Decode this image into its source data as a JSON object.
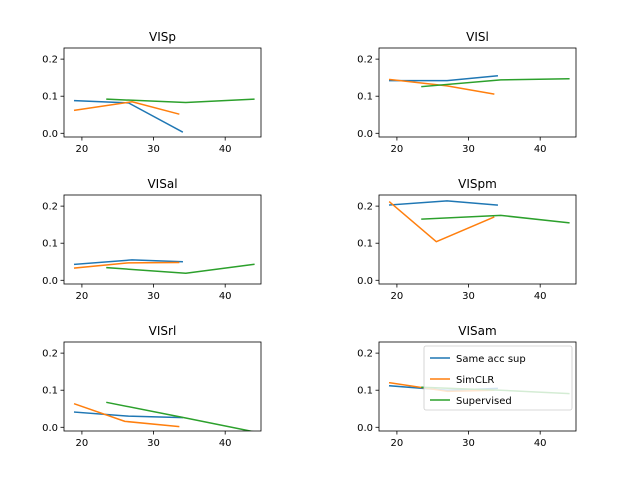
{
  "chart_data": [
    {
      "type": "line",
      "title": "VISp",
      "xlim": [
        17.5,
        45
      ],
      "ylim": [
        -0.01,
        0.23
      ],
      "xticks": [
        20,
        30,
        40
      ],
      "yticks": [
        "0.0",
        "0.1",
        "0.2"
      ],
      "series": [
        {
          "name": "Same acc sup",
          "color": "#1f77b4",
          "x": [
            19,
            26.5,
            34
          ],
          "y": [
            0.088,
            0.082,
            0.004
          ]
        },
        {
          "name": "SimCLR",
          "color": "#ff7f0e",
          "x": [
            19,
            27,
            33.5
          ],
          "y": [
            0.062,
            0.085,
            0.052
          ]
        },
        {
          "name": "Supervised",
          "color": "#2ca02c",
          "x": [
            23.5,
            34.5,
            44
          ],
          "y": [
            0.092,
            0.083,
            0.092
          ]
        }
      ]
    },
    {
      "type": "line",
      "title": "VISl",
      "xlim": [
        17.5,
        45
      ],
      "ylim": [
        -0.01,
        0.23
      ],
      "xticks": [
        20,
        30,
        40
      ],
      "yticks": [
        "0.0",
        "0.1",
        "0.2"
      ],
      "series": [
        {
          "name": "Same acc sup",
          "color": "#1f77b4",
          "x": [
            19,
            27,
            34
          ],
          "y": [
            0.142,
            0.142,
            0.155
          ]
        },
        {
          "name": "SimCLR",
          "color": "#ff7f0e",
          "x": [
            19,
            27,
            33.5
          ],
          "y": [
            0.145,
            0.128,
            0.106
          ]
        },
        {
          "name": "Supervised",
          "color": "#2ca02c",
          "x": [
            23.5,
            34.5,
            44
          ],
          "y": [
            0.126,
            0.144,
            0.147
          ]
        }
      ]
    },
    {
      "type": "line",
      "title": "VISal",
      "xlim": [
        17.5,
        45
      ],
      "ylim": [
        -0.01,
        0.23
      ],
      "xticks": [
        20,
        30,
        40
      ],
      "yticks": [
        "0.0",
        "0.1",
        "0.2"
      ],
      "series": [
        {
          "name": "Same acc sup",
          "color": "#1f77b4",
          "x": [
            19,
            27,
            34
          ],
          "y": [
            0.043,
            0.055,
            0.05
          ]
        },
        {
          "name": "SimCLR",
          "color": "#ff7f0e",
          "x": [
            19,
            26.5,
            33.5
          ],
          "y": [
            0.033,
            0.047,
            0.048
          ]
        },
        {
          "name": "Supervised",
          "color": "#2ca02c",
          "x": [
            23.5,
            34.5,
            44
          ],
          "y": [
            0.034,
            0.019,
            0.043
          ]
        }
      ]
    },
    {
      "type": "line",
      "title": "VISpm",
      "xlim": [
        17.5,
        45
      ],
      "ylim": [
        -0.01,
        0.23
      ],
      "xticks": [
        20,
        30,
        40
      ],
      "yticks": [
        "0.0",
        "0.1",
        "0.2"
      ],
      "series": [
        {
          "name": "Same acc sup",
          "color": "#1f77b4",
          "x": [
            19,
            27,
            34
          ],
          "y": [
            0.203,
            0.214,
            0.203
          ]
        },
        {
          "name": "SimCLR",
          "color": "#ff7f0e",
          "x": [
            19,
            25.5,
            33.5
          ],
          "y": [
            0.211,
            0.104,
            0.17
          ]
        },
        {
          "name": "Supervised",
          "color": "#2ca02c",
          "x": [
            23.5,
            34.5,
            44
          ],
          "y": [
            0.165,
            0.175,
            0.155
          ]
        }
      ]
    },
    {
      "type": "line",
      "title": "VISrl",
      "xlim": [
        17.5,
        45
      ],
      "ylim": [
        -0.01,
        0.23
      ],
      "xticks": [
        20,
        30,
        40
      ],
      "yticks": [
        "0.0",
        "0.1",
        "0.2"
      ],
      "series": [
        {
          "name": "Same acc sup",
          "color": "#1f77b4",
          "x": [
            19,
            26.5,
            34
          ],
          "y": [
            0.041,
            0.03,
            0.026
          ]
        },
        {
          "name": "SimCLR",
          "color": "#ff7f0e",
          "x": [
            19,
            26,
            33.5
          ],
          "y": [
            0.063,
            0.016,
            0.002
          ]
        },
        {
          "name": "Supervised",
          "color": "#2ca02c",
          "x": [
            23.5,
            34.5,
            44
          ],
          "y": [
            0.067,
            0.025,
            -0.012
          ]
        }
      ]
    },
    {
      "type": "line",
      "title": "VISam",
      "xlim": [
        17.5,
        45
      ],
      "ylim": [
        -0.01,
        0.23
      ],
      "xticks": [
        20,
        30,
        40
      ],
      "yticks": [
        "0.0",
        "0.1",
        "0.2"
      ],
      "legend": "top-right",
      "series": [
        {
          "name": "Same acc sup",
          "color": "#1f77b4",
          "x": [
            19,
            27,
            34
          ],
          "y": [
            0.112,
            0.1,
            0.105
          ]
        },
        {
          "name": "SimCLR",
          "color": "#ff7f0e",
          "x": [
            19,
            27,
            33.5
          ],
          "y": [
            0.12,
            0.097,
            0.1
          ]
        },
        {
          "name": "Supervised",
          "color": "#2ca02c",
          "x": [
            23.5,
            34.5,
            44
          ],
          "y": [
            0.108,
            0.1,
            0.091
          ]
        }
      ]
    }
  ]
}
